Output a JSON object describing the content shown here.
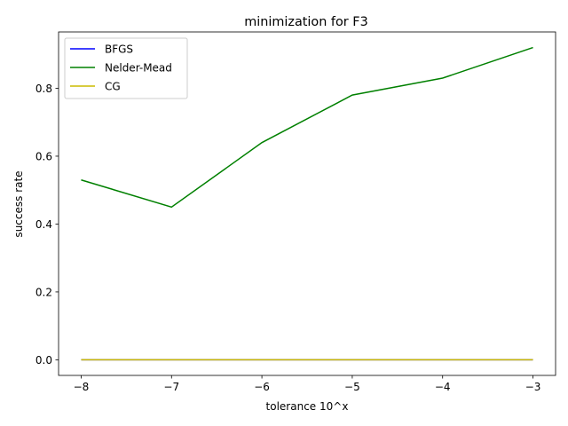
{
  "chart_data": {
    "type": "line",
    "title": "minimization for F3",
    "xlabel": "tolerance 10^x",
    "ylabel": "success rate",
    "x": [
      -8,
      -7,
      -6,
      -5,
      -4,
      -3
    ],
    "xlim": [
      -8.25,
      -2.75
    ],
    "ylim": [
      -0.046,
      0.966
    ],
    "xticks": [
      -8,
      -7,
      -6,
      -5,
      -4,
      -3
    ],
    "xtick_labels": [
      "−8",
      "−7",
      "−6",
      "−5",
      "−4",
      "−3"
    ],
    "yticks": [
      0.0,
      0.2,
      0.4,
      0.6,
      0.8
    ],
    "ytick_labels": [
      "0.0",
      "0.2",
      "0.4",
      "0.6",
      "0.8"
    ],
    "grid": false,
    "legend_position": "upper-left",
    "series": [
      {
        "name": "BFGS",
        "color": "#0000ff",
        "values": [
          0,
          0,
          0,
          0,
          0,
          0
        ]
      },
      {
        "name": "Nelder-Mead",
        "color": "#008000",
        "values": [
          0.53,
          0.45,
          0.64,
          0.78,
          0.83,
          0.92
        ]
      },
      {
        "name": "CG",
        "color": "#ccbb00",
        "values": [
          0,
          0,
          0,
          0,
          0,
          0
        ]
      }
    ]
  }
}
